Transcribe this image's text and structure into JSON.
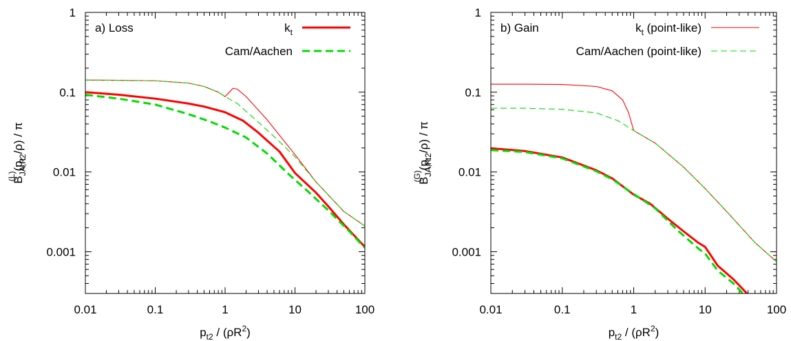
{
  "chart_data": [
    {
      "type": "line",
      "panel_label": "a) Loss",
      "x_scale": "log",
      "y_scale": "log",
      "xlim": [
        0.01,
        100
      ],
      "ylim": [
        0.0003,
        1
      ],
      "xlabel": {
        "main": "p",
        "sub": "t2",
        "tail": " / (ρR",
        "sup": "2",
        "end": ")"
      },
      "ylabel": {
        "main": "B",
        "sub": "JA,R",
        "sup": "(L)",
        "tail": "(p",
        "sub2": "t2",
        "end": "/ρ) / π"
      },
      "x_ticks": [
        "0.01",
        "0.1",
        "1",
        "10",
        "100"
      ],
      "y_ticks": [
        "0.001",
        "0.01",
        "0.1",
        "1"
      ],
      "legend_position": "top-right",
      "series": [
        {
          "name": "k",
          "name_sub": "t",
          "color": "#ff0000",
          "style": "solid",
          "width": "thick",
          "in_legend": true,
          "points": [
            [
              0.01,
              0.1
            ],
            [
              0.03,
              0.093
            ],
            [
              0.1,
              0.083
            ],
            [
              0.3,
              0.072
            ],
            [
              0.5,
              0.066
            ],
            [
              1,
              0.056
            ],
            [
              1.8,
              0.044
            ],
            [
              3,
              0.031
            ],
            [
              6,
              0.018
            ],
            [
              10,
              0.0097
            ],
            [
              20,
              0.0055
            ],
            [
              30,
              0.0037
            ],
            [
              50,
              0.0022
            ],
            [
              100,
              0.00115
            ]
          ]
        },
        {
          "name": "Cam/Aachen",
          "color": "#00dd00",
          "style": "dashed",
          "width": "thick",
          "in_legend": true,
          "points": [
            [
              0.01,
              0.093
            ],
            [
              0.03,
              0.083
            ],
            [
              0.1,
              0.07
            ],
            [
              0.3,
              0.053
            ],
            [
              0.6,
              0.043
            ],
            [
              1,
              0.036
            ],
            [
              2,
              0.027
            ],
            [
              4,
              0.017
            ],
            [
              8,
              0.0095
            ],
            [
              15,
              0.0058
            ],
            [
              30,
              0.0033
            ],
            [
              60,
              0.0018
            ],
            [
              100,
              0.00112
            ]
          ]
        },
        {
          "name": "",
          "color": "#ff0000",
          "style": "solid",
          "width": "thin",
          "in_legend": false,
          "points": [
            [
              0.01,
              0.142
            ],
            [
              0.03,
              0.141
            ],
            [
              0.1,
              0.139
            ],
            [
              0.3,
              0.13
            ],
            [
              0.5,
              0.118
            ],
            [
              0.8,
              0.1
            ],
            [
              1.0,
              0.088
            ],
            [
              1.15,
              0.1
            ],
            [
              1.3,
              0.112
            ],
            [
              1.5,
              0.109
            ],
            [
              2,
              0.088
            ],
            [
              4,
              0.045
            ],
            [
              10,
              0.0165
            ],
            [
              20,
              0.0075
            ],
            [
              50,
              0.0032
            ],
            [
              100,
              0.0021
            ]
          ]
        },
        {
          "name": "",
          "color": "#00dd00",
          "style": "dashed",
          "width": "thin",
          "in_legend": false,
          "points": [
            [
              0.01,
              0.142
            ],
            [
              0.03,
              0.141
            ],
            [
              0.1,
              0.139
            ],
            [
              0.3,
              0.13
            ],
            [
              0.5,
              0.118
            ],
            [
              0.8,
              0.1
            ],
            [
              1.0,
              0.088
            ],
            [
              1.5,
              0.072
            ],
            [
              3,
              0.042
            ],
            [
              6,
              0.024
            ],
            [
              10,
              0.0155
            ],
            [
              20,
              0.0075
            ],
            [
              50,
              0.0032
            ],
            [
              100,
              0.0021
            ]
          ]
        }
      ]
    },
    {
      "type": "line",
      "panel_label": "b) Gain",
      "x_scale": "log",
      "y_scale": "log",
      "xlim": [
        0.01,
        100
      ],
      "ylim": [
        0.0003,
        1
      ],
      "xlabel": {
        "main": "p",
        "sub": "t2",
        "tail": " / (ρR",
        "sup": "2",
        "end": ")"
      },
      "ylabel": {
        "main": "B",
        "sub": "JA,R",
        "sup": "(G)",
        "tail": "(p",
        "sub2": "t2",
        "end": "/ρ) / π"
      },
      "x_ticks": [
        "0.01",
        "0.1",
        "1",
        "10",
        "100"
      ],
      "y_ticks": [
        "0.001",
        "0.01",
        "0.1",
        "1"
      ],
      "legend_position": "top-right",
      "series": [
        {
          "name": "k",
          "name_sub": "t",
          "name_suffix": " (point-like)",
          "color": "#ff0000",
          "style": "solid",
          "width": "thin",
          "in_legend": true,
          "points": [
            [
              0.01,
              0.126
            ],
            [
              0.03,
              0.126
            ],
            [
              0.1,
              0.125
            ],
            [
              0.3,
              0.118
            ],
            [
              0.5,
              0.104
            ],
            [
              0.7,
              0.08
            ],
            [
              0.85,
              0.055
            ],
            [
              1,
              0.033
            ],
            [
              2,
              0.023
            ],
            [
              5,
              0.0115
            ],
            [
              10,
              0.0062
            ],
            [
              20,
              0.0032
            ],
            [
              50,
              0.0013
            ],
            [
              100,
              0.00075
            ]
          ]
        },
        {
          "name": "Cam/Aachen (point-like)",
          "color": "#00dd00",
          "style": "dashed",
          "width": "thin",
          "in_legend": true,
          "points": [
            [
              0.01,
              0.063
            ],
            [
              0.03,
              0.063
            ],
            [
              0.1,
              0.061
            ],
            [
              0.3,
              0.055
            ],
            [
              0.6,
              0.044
            ],
            [
              1,
              0.033
            ],
            [
              2,
              0.023
            ],
            [
              5,
              0.0115
            ],
            [
              10,
              0.0062
            ],
            [
              20,
              0.0032
            ],
            [
              50,
              0.0013
            ],
            [
              100,
              0.00075
            ]
          ]
        },
        {
          "name": "",
          "color": "#ff0000",
          "style": "solid",
          "width": "thick",
          "in_legend": false,
          "points": [
            [
              0.01,
              0.0198
            ],
            [
              0.03,
              0.0183
            ],
            [
              0.1,
              0.0152
            ],
            [
              0.3,
              0.0105
            ],
            [
              0.5,
              0.0083
            ],
            [
              1,
              0.0052
            ],
            [
              1.7,
              0.004
            ],
            [
              3,
              0.0026
            ],
            [
              5,
              0.0018
            ],
            [
              8,
              0.0013
            ],
            [
              10,
              0.00115
            ],
            [
              15,
              0.00067
            ],
            [
              25,
              0.00045
            ],
            [
              40,
              0.00029
            ]
          ]
        },
        {
          "name": "",
          "color": "#00dd00",
          "style": "dashed",
          "width": "thick",
          "in_legend": false,
          "points": [
            [
              0.01,
              0.0188
            ],
            [
              0.03,
              0.0178
            ],
            [
              0.1,
              0.0148
            ],
            [
              0.3,
              0.0102
            ],
            [
              0.5,
              0.0081
            ],
            [
              1,
              0.0053
            ],
            [
              2,
              0.0035
            ],
            [
              4,
              0.0019
            ],
            [
              8,
              0.0011
            ],
            [
              10,
              0.00095
            ],
            [
              15,
              0.00058
            ],
            [
              25,
              0.0004
            ],
            [
              35,
              0.00029
            ]
          ]
        }
      ]
    }
  ]
}
